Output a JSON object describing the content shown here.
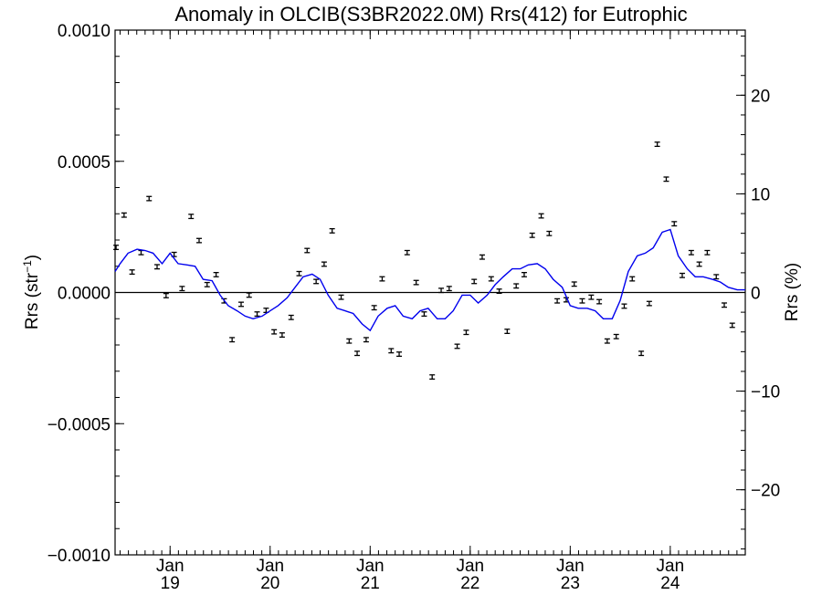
{
  "chart_data": {
    "type": "line",
    "title": "Anomaly in OLCIB(S3BR2022.0M) Rrs(412) for Eutrophic",
    "ylabel_left": {
      "prefix": "Rrs (str",
      "superscript": "−1",
      "suffix": ")"
    },
    "ylabel_right": "Rrs (%)",
    "xlim": [
      2018.45,
      2024.75
    ],
    "ylim_left": [
      -0.001,
      0.001
    ],
    "ylim_right": [
      -26.6,
      26.6
    ],
    "zero_line": true,
    "grid": false,
    "yticks_left": [
      {
        "value": 0.001,
        "label": "0.0010"
      },
      {
        "value": 0.0005,
        "label": "0.0005"
      },
      {
        "value": 0.0,
        "label": "0.0000"
      },
      {
        "value": -0.0005,
        "label": "−0.0005"
      },
      {
        "value": -0.001,
        "label": "−0.0010"
      }
    ],
    "yticks_right": [
      {
        "value": 20,
        "label": "20"
      },
      {
        "value": 10,
        "label": "10"
      },
      {
        "value": 0,
        "label": "0"
      },
      {
        "value": -10,
        "label": "−10"
      },
      {
        "value": -20,
        "label": "−20"
      }
    ],
    "xticks": [
      {
        "value": 2019.0,
        "month": "Jan",
        "year": "19"
      },
      {
        "value": 2020.0,
        "month": "Jan",
        "year": "20"
      },
      {
        "value": 2021.0,
        "month": "Jan",
        "year": "21"
      },
      {
        "value": 2022.0,
        "month": "Jan",
        "year": "22"
      },
      {
        "value": 2023.0,
        "month": "Jan",
        "year": "23"
      },
      {
        "value": 2024.0,
        "month": "Jan",
        "year": "24"
      }
    ],
    "series": [
      {
        "type": "errorbar",
        "color": "#000000",
        "err": 8e-06,
        "x": [
          2018.46,
          2018.54,
          2018.62,
          2018.71,
          2018.79,
          2018.87,
          2018.96,
          2019.04,
          2019.12,
          2019.21,
          2019.29,
          2019.37,
          2019.46,
          2019.54,
          2019.62,
          2019.71,
          2019.79,
          2019.87,
          2019.96,
          2020.04,
          2020.12,
          2020.21,
          2020.29,
          2020.37,
          2020.46,
          2020.54,
          2020.62,
          2020.71,
          2020.79,
          2020.87,
          2020.96,
          2021.04,
          2021.12,
          2021.21,
          2021.29,
          2021.37,
          2021.46,
          2021.54,
          2021.62,
          2021.71,
          2021.79,
          2021.87,
          2021.96,
          2022.04,
          2022.12,
          2022.21,
          2022.29,
          2022.37,
          2022.46,
          2022.54,
          2022.62,
          2022.71,
          2022.79,
          2022.87,
          2022.96,
          2023.04,
          2023.12,
          2023.21,
          2023.29,
          2023.37,
          2023.46,
          2023.54,
          2023.62,
          2023.71,
          2023.79,
          2023.87,
          2023.96,
          2024.04,
          2024.12,
          2024.21,
          2024.29,
          2024.37,
          2024.46,
          2024.54,
          2024.62
        ],
        "y": [
          0.000172,
          0.000295,
          7.8e-05,
          0.000152,
          0.000358,
          9.8e-05,
          -1.2e-05,
          0.000145,
          1.5e-05,
          0.00029,
          0.000198,
          3e-05,
          6.8e-05,
          -3.2e-05,
          -0.00018,
          -4.5e-05,
          -1e-05,
          -8.2e-05,
          -6.8e-05,
          -0.00015,
          -0.000162,
          -9.5e-05,
          7.2e-05,
          0.00016,
          4.2e-05,
          0.000108,
          0.000235,
          -1.8e-05,
          -0.000185,
          -0.000232,
          -0.00018,
          -5.8e-05,
          5.2e-05,
          -0.000222,
          -0.000235,
          0.000152,
          3.8e-05,
          -8.2e-05,
          -0.000322,
          8e-06,
          1.5e-05,
          -0.000205,
          -0.000152,
          4.2e-05,
          0.000135,
          5.2e-05,
          5e-06,
          -0.000148,
          2.5e-05,
          6.8e-05,
          0.000218,
          0.000292,
          0.000225,
          -3.2e-05,
          -2.8e-05,
          3.2e-05,
          -3.2e-05,
          -1.8e-05,
          -3.5e-05,
          -0.000185,
          -0.000168,
          -5.2e-05,
          5.2e-05,
          -0.000232,
          -4.2e-05,
          0.000565,
          0.000432,
          0.000262,
          6.5e-05,
          0.000152,
          0.000108,
          0.000152,
          6e-05,
          -4.8e-05,
          -0.000125
        ]
      },
      {
        "type": "line",
        "color": "#0000ee",
        "x": [
          2018.45,
          2018.5,
          2018.58,
          2018.67,
          2018.75,
          2018.83,
          2018.92,
          2019.0,
          2019.08,
          2019.17,
          2019.25,
          2019.33,
          2019.42,
          2019.5,
          2019.58,
          2019.67,
          2019.75,
          2019.83,
          2019.92,
          2020.0,
          2020.08,
          2020.17,
          2020.25,
          2020.33,
          2020.42,
          2020.5,
          2020.58,
          2020.67,
          2020.75,
          2020.83,
          2020.92,
          2021.0,
          2021.08,
          2021.17,
          2021.25,
          2021.33,
          2021.42,
          2021.5,
          2021.58,
          2021.67,
          2021.75,
          2021.83,
          2021.92,
          2022.0,
          2022.08,
          2022.17,
          2022.25,
          2022.33,
          2022.42,
          2022.5,
          2022.58,
          2022.67,
          2022.75,
          2022.83,
          2022.92,
          2023.0,
          2023.08,
          2023.17,
          2023.25,
          2023.33,
          2023.42,
          2023.5,
          2023.58,
          2023.67,
          2023.75,
          2023.83,
          2023.92,
          2024.0,
          2024.08,
          2024.17,
          2024.25,
          2024.33,
          2024.42,
          2024.5,
          2024.58,
          2024.67,
          2024.75
        ],
        "y": [
          8e-05,
          0.00011,
          0.00015,
          0.000165,
          0.00016,
          0.00015,
          0.00011,
          0.00015,
          0.00011,
          0.000105,
          0.0001,
          5e-05,
          4.5e-05,
          -1e-05,
          -5e-05,
          -7e-05,
          -9e-05,
          -0.0001,
          -9e-05,
          -7e-05,
          -5e-05,
          -2e-05,
          2e-05,
          6e-05,
          7e-05,
          5e-05,
          -1e-05,
          -6e-05,
          -7e-05,
          -8e-05,
          -0.00012,
          -0.000145,
          -9e-05,
          -6e-05,
          -5e-05,
          -9e-05,
          -0.0001,
          -7e-05,
          -6e-05,
          -0.0001,
          -0.0001,
          -7e-05,
          -1e-05,
          -1e-05,
          -4e-05,
          -1e-05,
          3e-05,
          6e-05,
          9e-05,
          9e-05,
          0.000105,
          0.00011,
          9e-05,
          5e-05,
          2e-05,
          -5e-05,
          -6e-05,
          -6e-05,
          -7e-05,
          -0.0001,
          -0.0001,
          -3e-05,
          8e-05,
          0.00014,
          0.00015,
          0.00017,
          0.00023,
          0.00024,
          0.00014,
          9e-05,
          6e-05,
          6e-05,
          5e-05,
          4e-05,
          2e-05,
          1e-05,
          1e-05
        ]
      }
    ]
  }
}
